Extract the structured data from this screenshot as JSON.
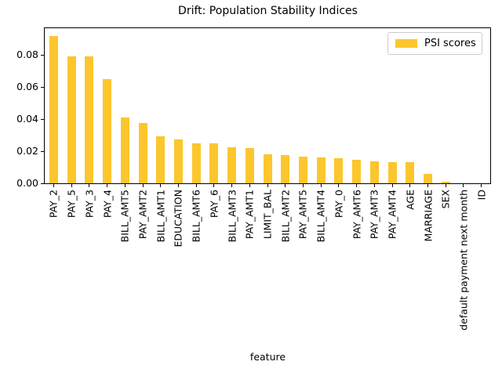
{
  "chart_data": {
    "type": "bar",
    "title": "Drift: Population Stability Indices",
    "xlabel": "feature",
    "ylabel": "",
    "legend": {
      "position": "upper right",
      "entries": [
        "PSI scores"
      ]
    },
    "bar_color": "#FCC62D",
    "grid": false,
    "ylim": [
      0,
      0.0972
    ],
    "yticks": [
      0,
      0.02,
      0.04,
      0.06,
      0.08
    ],
    "ytick_labels": [
      "0.00",
      "0.02",
      "0.04",
      "0.06",
      "0.08"
    ],
    "categories": [
      "PAY_2",
      "PAY_5",
      "PAY_3",
      "PAY_4",
      "BILL_AMT5",
      "PAY_AMT2",
      "BILL_AMT1",
      "EDUCATION",
      "BILL_AMT6",
      "PAY_6",
      "BILL_AMT3",
      "PAY_AMT1",
      "LIMIT_BAL",
      "BILL_AMT2",
      "PAY_AMT5",
      "BILL_AMT4",
      "PAY_0",
      "PAY_AMT6",
      "PAY_AMT3",
      "PAY_AMT4",
      "AGE",
      "MARRIAGE",
      "SEX",
      "default payment next month",
      "ID"
    ],
    "values": [
      0.092,
      0.079,
      0.079,
      0.065,
      0.041,
      0.0375,
      0.0295,
      0.0275,
      0.025,
      0.025,
      0.0225,
      0.022,
      0.018,
      0.0175,
      0.0165,
      0.016,
      0.0155,
      0.0145,
      0.0135,
      0.013,
      0.013,
      0.006,
      0.001,
      0.0,
      0.0
    ]
  }
}
